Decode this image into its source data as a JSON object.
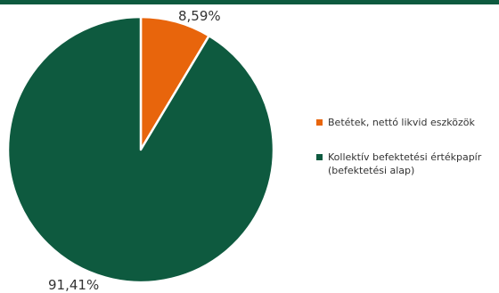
{
  "chart_data": {
    "type": "pie",
    "series": [
      {
        "name": "Betétek, nettó likvid eszközök",
        "value": 8.59,
        "label": "8,59%",
        "color": "#e8650c"
      },
      {
        "name": "Kollektív befektetési értékpapír\n(befektetési alap)",
        "value": 91.41,
        "label": "91,41%",
        "color": "#0e5a3f"
      }
    ],
    "start": "12 o'clock",
    "direction": "clockwise",
    "legend_position": "right"
  },
  "colors": {
    "top_bar": "#0e5a3f",
    "slice_border": "#ffffff"
  }
}
